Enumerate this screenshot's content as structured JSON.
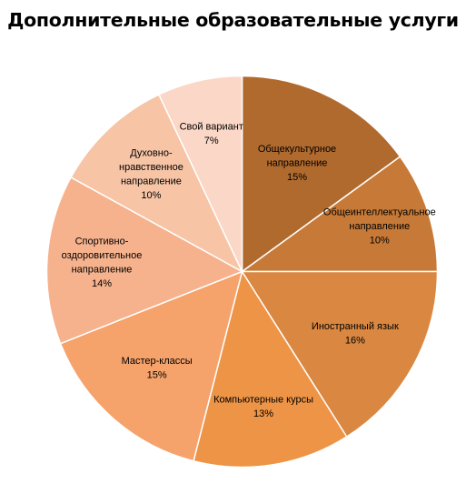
{
  "chart_data": {
    "type": "pie",
    "title": "Дополнительные образовательные услуги",
    "start_angle_deg": 0,
    "direction": "clockwise",
    "slices": [
      {
        "label": [
          "Общекультурное",
          "направление"
        ],
        "value": 15,
        "percent_label": "15%",
        "color": "#B06A2E"
      },
      {
        "label": [
          "Общеинтеллектуальное",
          "направление"
        ],
        "value": 10,
        "percent_label": "10%",
        "color": "#C77A37"
      },
      {
        "label": [
          "Иностранный язык"
        ],
        "value": 16,
        "percent_label": "16%",
        "color": "#D98741"
      },
      {
        "label": [
          "Компьютерные  курсы"
        ],
        "value": 13,
        "percent_label": "13%",
        "color": "#EE9446"
      },
      {
        "label": [
          "Мастер-классы"
        ],
        "value": 15,
        "percent_label": "15%",
        "color": "#F5A26B"
      },
      {
        "label": [
          "Спортивно-",
          "оздоровительное",
          "направление"
        ],
        "value": 14,
        "percent_label": "14%",
        "color": "#F6B28D"
      },
      {
        "label": [
          "Духовно-",
          "нравственное",
          "направление"
        ],
        "value": 10,
        "percent_label": "10%",
        "color": "#F7C4A6"
      },
      {
        "label": [
          "Свой вариант"
        ],
        "value": 7,
        "percent_label": "7%",
        "color": "#FAD7C6"
      }
    ],
    "legend": "none",
    "data_labels": "inside"
  }
}
